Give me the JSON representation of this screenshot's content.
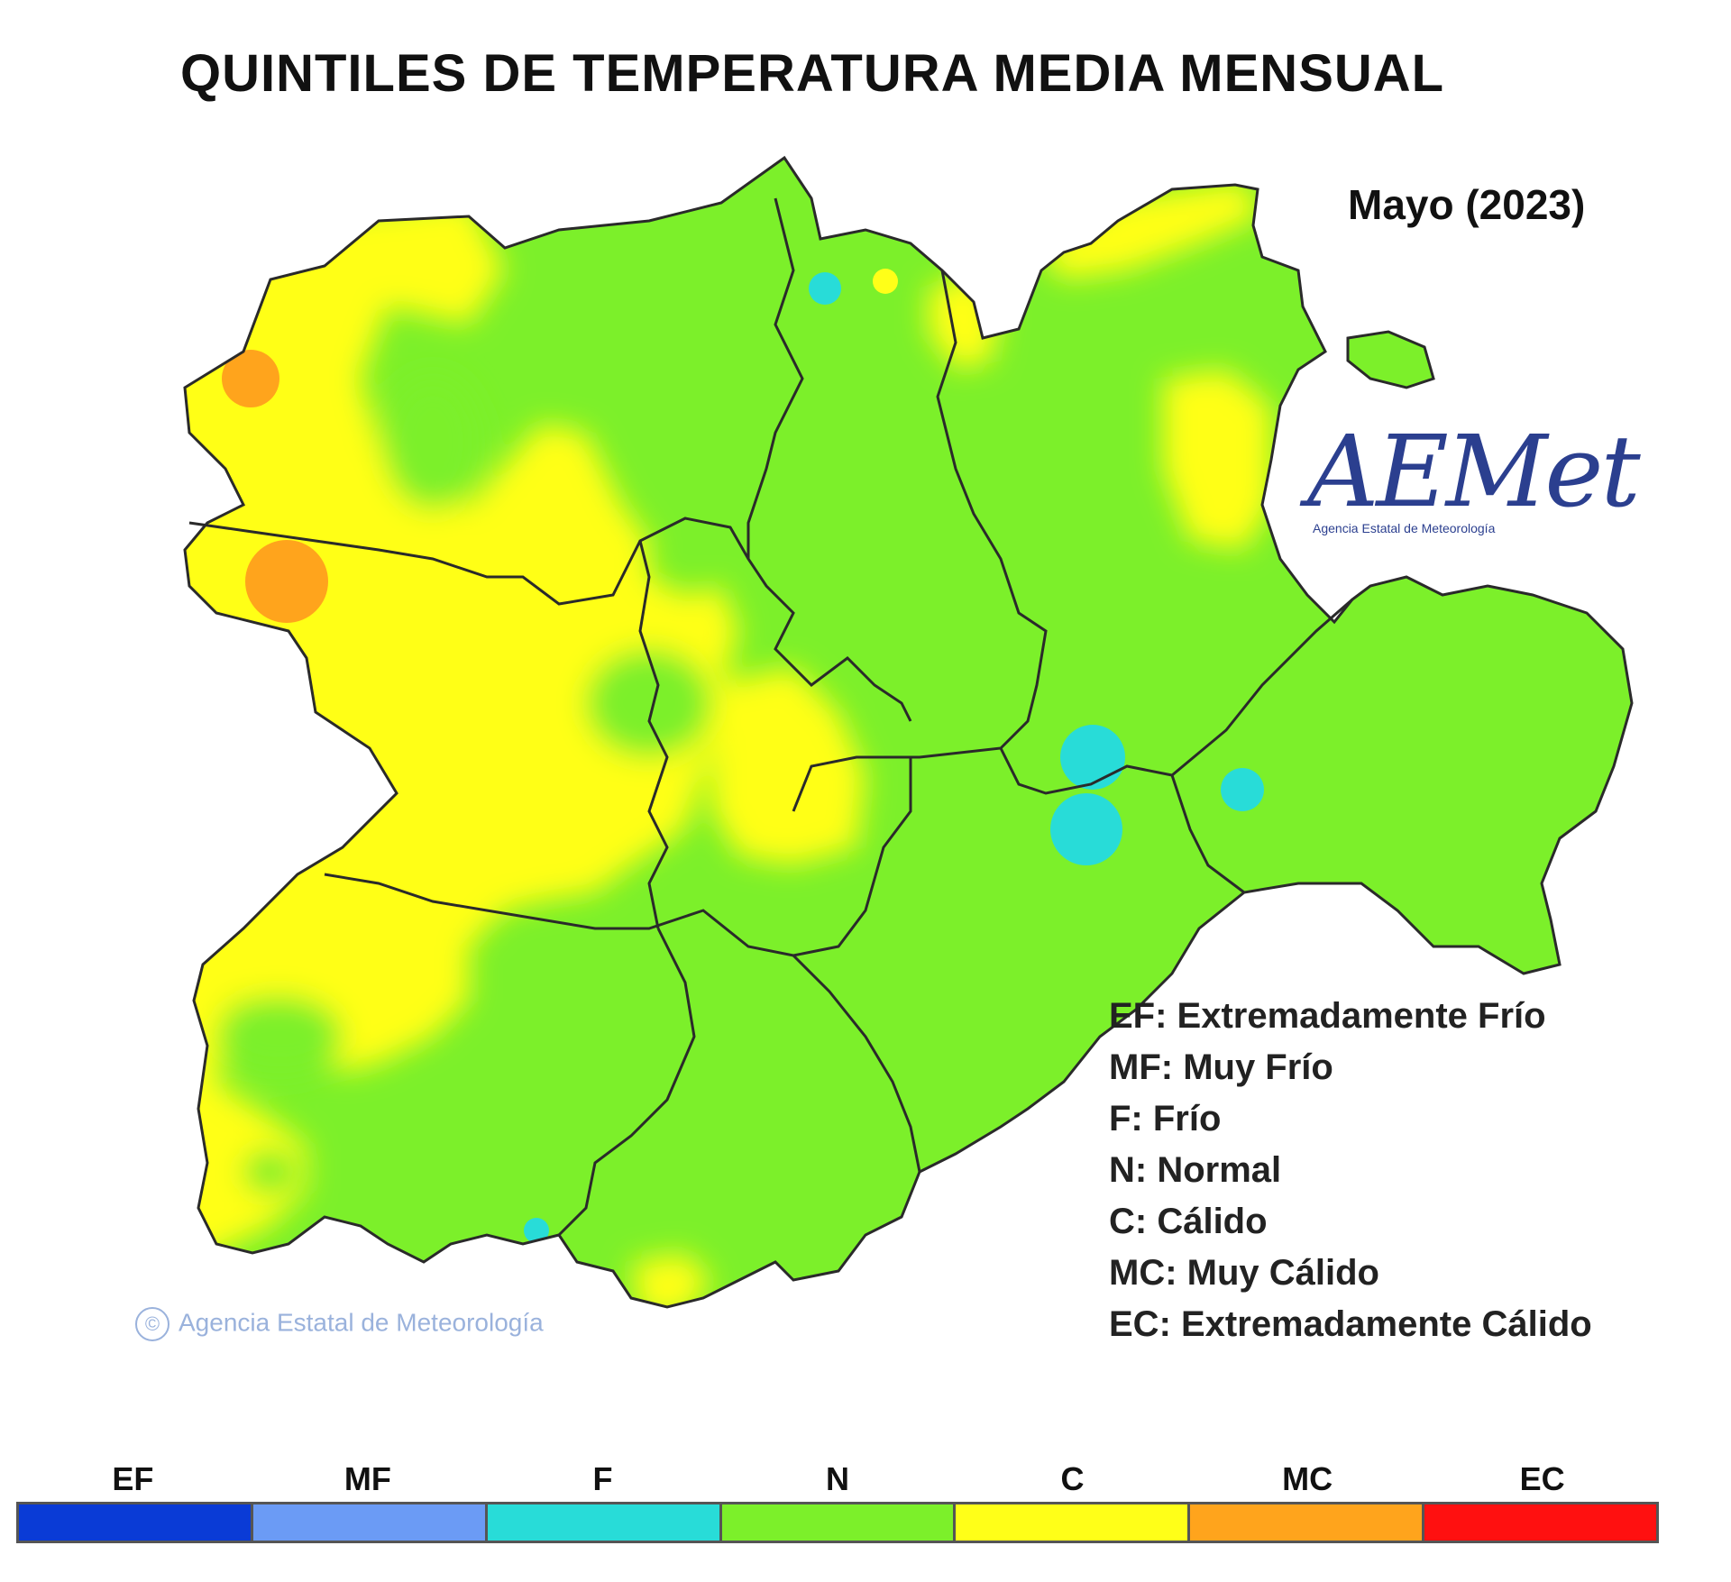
{
  "title": "QUINTILES DE TEMPERATURA MEDIA MENSUAL",
  "period": "Mayo (2023)",
  "logo": {
    "name": "AEMet",
    "subtitle": "Agencia Estatal de Meteorología"
  },
  "watermark": "Agencia Estatal de Meteorología",
  "legend": [
    "EF: Extremadamente Frío",
    "MF: Muy Frío",
    "F: Frío",
    "N: Normal",
    "C: Cálido",
    "MC: Muy Cálido",
    "EC: Extremadamente Cálido"
  ],
  "scale": [
    {
      "code": "EF",
      "color": "#0a3bd6"
    },
    {
      "code": "MF",
      "color": "#6b9bf5"
    },
    {
      "code": "F",
      "color": "#28dcd8"
    },
    {
      "code": "N",
      "color": "#7cf02a"
    },
    {
      "code": "C",
      "color": "#ffff18"
    },
    {
      "code": "MC",
      "color": "#ffa41c"
    },
    {
      "code": "EC",
      "color": "#ff1010"
    }
  ]
}
